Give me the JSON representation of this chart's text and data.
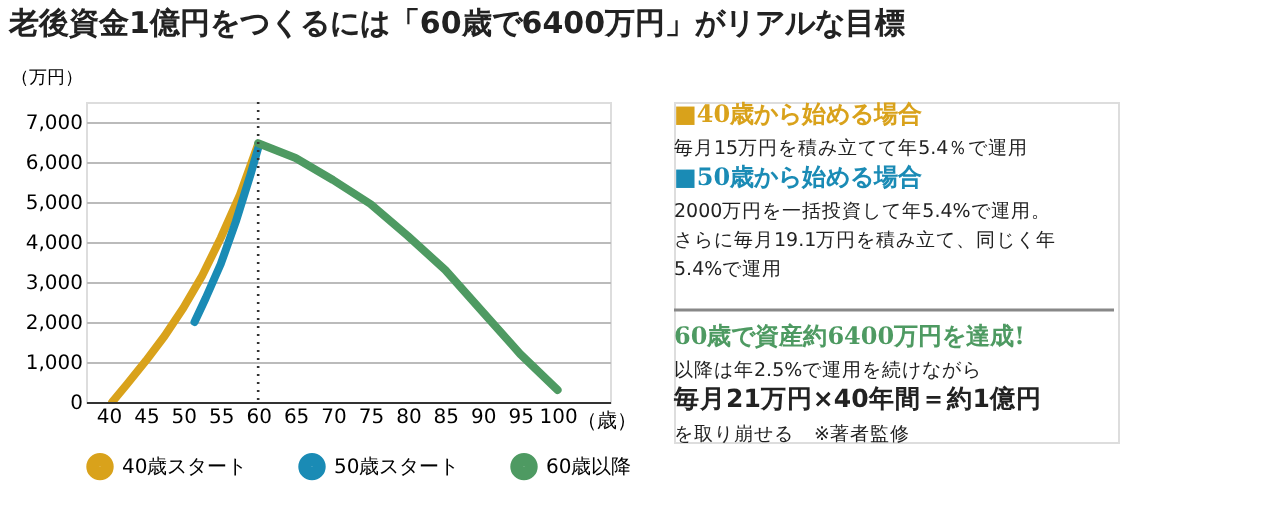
{
  "chart_data": {
    "type": "line",
    "title": "老後資金1億円をつくるには「60歳で6400万円」がリアルな目標",
    "xlabel": "（歳）",
    "ylabel": "（万円）",
    "series": [
      {
        "name": "40歳スタート",
        "color": "#d9a21b",
        "x": [
          40.5,
          42.5,
          45,
          47.5,
          50,
          52.5,
          55,
          57.5,
          60
        ],
        "values": [
          0,
          450,
          1030,
          1650,
          2350,
          3150,
          4100,
          5150,
          6450
        ]
      },
      {
        "name": "50歳スタート",
        "color": "#1a8bb5",
        "x": [
          51.5,
          53,
          55,
          57,
          59,
          60
        ],
        "values": [
          2000,
          2600,
          3450,
          4500,
          5700,
          6350
        ]
      },
      {
        "name": "60歳以降",
        "color": "#4e9a62",
        "x": [
          60,
          65,
          70,
          75,
          80,
          85,
          90,
          95,
          100
        ],
        "values": [
          6470,
          6100,
          5550,
          4950,
          4150,
          3300,
          2250,
          1200,
          300
        ]
      }
    ],
    "xlim": [
      37,
      107
    ],
    "xticks": [
      40,
      45,
      50,
      55,
      60,
      65,
      70,
      75,
      80,
      85,
      90,
      95,
      100
    ],
    "ylim": [
      0,
      7500
    ],
    "yticks": [
      0,
      {
        "value": 1000,
        "label": "1,000"
      },
      {
        "value": 2000,
        "label": "2,000"
      },
      {
        "value": 3000,
        "label": "3,000"
      },
      {
        "value": 4000,
        "label": "4,000"
      },
      {
        "value": 5000,
        "label": "5,000"
      },
      {
        "value": 6000,
        "label": "6,000"
      },
      {
        "value": 7000,
        "label": "7,000"
      }
    ],
    "grid": "y",
    "legend": "bottom",
    "line_style": "solid",
    "marker": "none",
    "ref_lines": [
      {
        "axis": "x",
        "value": 60,
        "label": null,
        "color": "#333333",
        "line_style": "dotted"
      }
    ],
    "annotations": [
      "■40歳から始める場合",
      "毎月15万円を積み立てて年5.4％で運用",
      "■50歳から始める場合",
      "2000万円を一括投資して年5.4%で運用。",
      "さらに毎月19.1万円を積み立て、同じく年",
      "5.4%で運用",
      "60歳で資産約6400万円を達成!",
      "以降は年2.5%で運用を続けながら",
      "毎月21万円×40年間＝約1億円",
      "を取り崩せる　※著者監修"
    ]
  }
}
